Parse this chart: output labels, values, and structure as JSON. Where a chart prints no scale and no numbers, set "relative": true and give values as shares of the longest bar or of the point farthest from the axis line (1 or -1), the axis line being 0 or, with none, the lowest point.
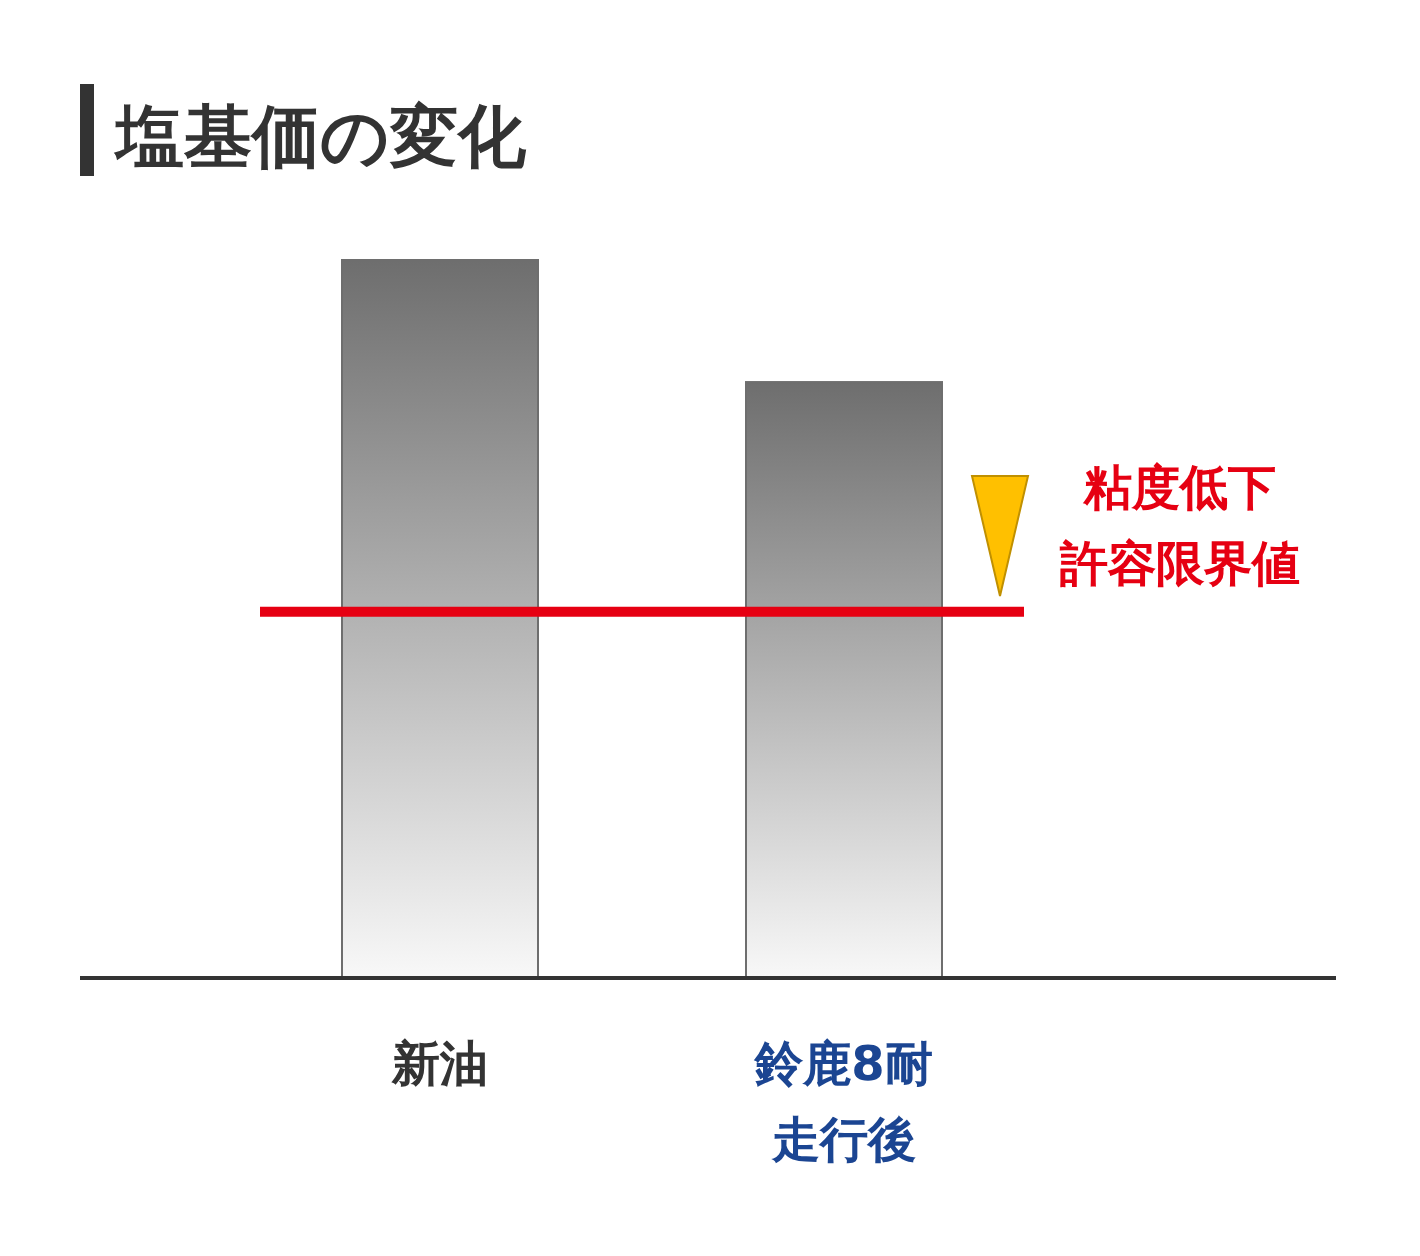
{
  "chart_data": {
    "type": "bar",
    "title": "塩基価の変化",
    "relative": true,
    "categories": [
      "新油",
      "鈴鹿8耐走行後"
    ],
    "values": [
      1,
      0.83
    ],
    "color": "#6e6e6e",
    "ref_lines": [
      {
        "axis": "y",
        "value": 0.51,
        "label": "粘度低下許容限界値",
        "color": "#e60012"
      }
    ]
  }
}
